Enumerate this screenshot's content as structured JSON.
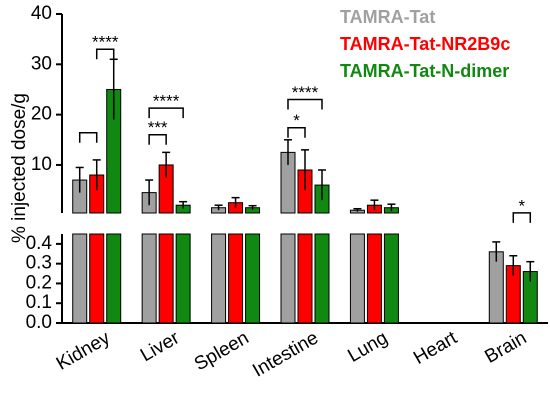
{
  "chart_data": {
    "type": "bar",
    "y_label": "% injected dose/g",
    "categories": [
      "Kidney",
      "Liver",
      "Spleen",
      "Intestine",
      "Lung",
      "Heart",
      "Brain"
    ],
    "series": [
      {
        "name": "TAMRA-Tat",
        "color": "#a0a0a0",
        "values": [
          7,
          4.5,
          1.5,
          12.5,
          1,
          null,
          0.36
        ],
        "errors": [
          2.5,
          2.5,
          0.5,
          2.5,
          0.3,
          null,
          0.05
        ]
      },
      {
        "name": "TAMRA-Tat-NR2B9c",
        "color": "#ff0000",
        "values": [
          8,
          10,
          2.5,
          9,
          2,
          null,
          0.29
        ],
        "errors": [
          3,
          2.5,
          1,
          4,
          1,
          null,
          0.05
        ]
      },
      {
        "name": "TAMRA-Tat-N-dimer",
        "color": "#118811",
        "values": [
          25,
          2,
          1.5,
          6,
          1.5,
          null,
          0.26
        ],
        "errors": [
          6,
          0.7,
          0.4,
          3,
          0.7,
          null,
          0.05
        ]
      }
    ],
    "ylim": [
      0.45,
      40
    ],
    "yticks": [
      10,
      20,
      30,
      40
    ],
    "ylim_lower": [
      0,
      0.45
    ],
    "yticks_lower": [
      {
        "value": 0,
        "label": "0.0"
      },
      0.1,
      0.2,
      0.3,
      0.4
    ],
    "annotations": [
      {
        "category": 0,
        "from": 0,
        "to": 1,
        "y": 16.4
      },
      {
        "category": 0,
        "from": 1,
        "to": 2,
        "y": 33,
        "text": "****"
      },
      {
        "category": 1,
        "from": 0,
        "to": 1,
        "y": 16,
        "text": "***"
      },
      {
        "category": 1,
        "from": 0,
        "to": 2,
        "y": 21.3,
        "text": "****"
      },
      {
        "category": 3,
        "from": 0,
        "to": 1,
        "y": 17.4,
        "text": "*"
      },
      {
        "category": 3,
        "from": 0,
        "to": 2,
        "y": 23,
        "text": "****"
      },
      {
        "category": 6,
        "from": 1,
        "to": 2,
        "y": 0.47,
        "text": "*"
      }
    ],
    "legend": "top-right"
  }
}
